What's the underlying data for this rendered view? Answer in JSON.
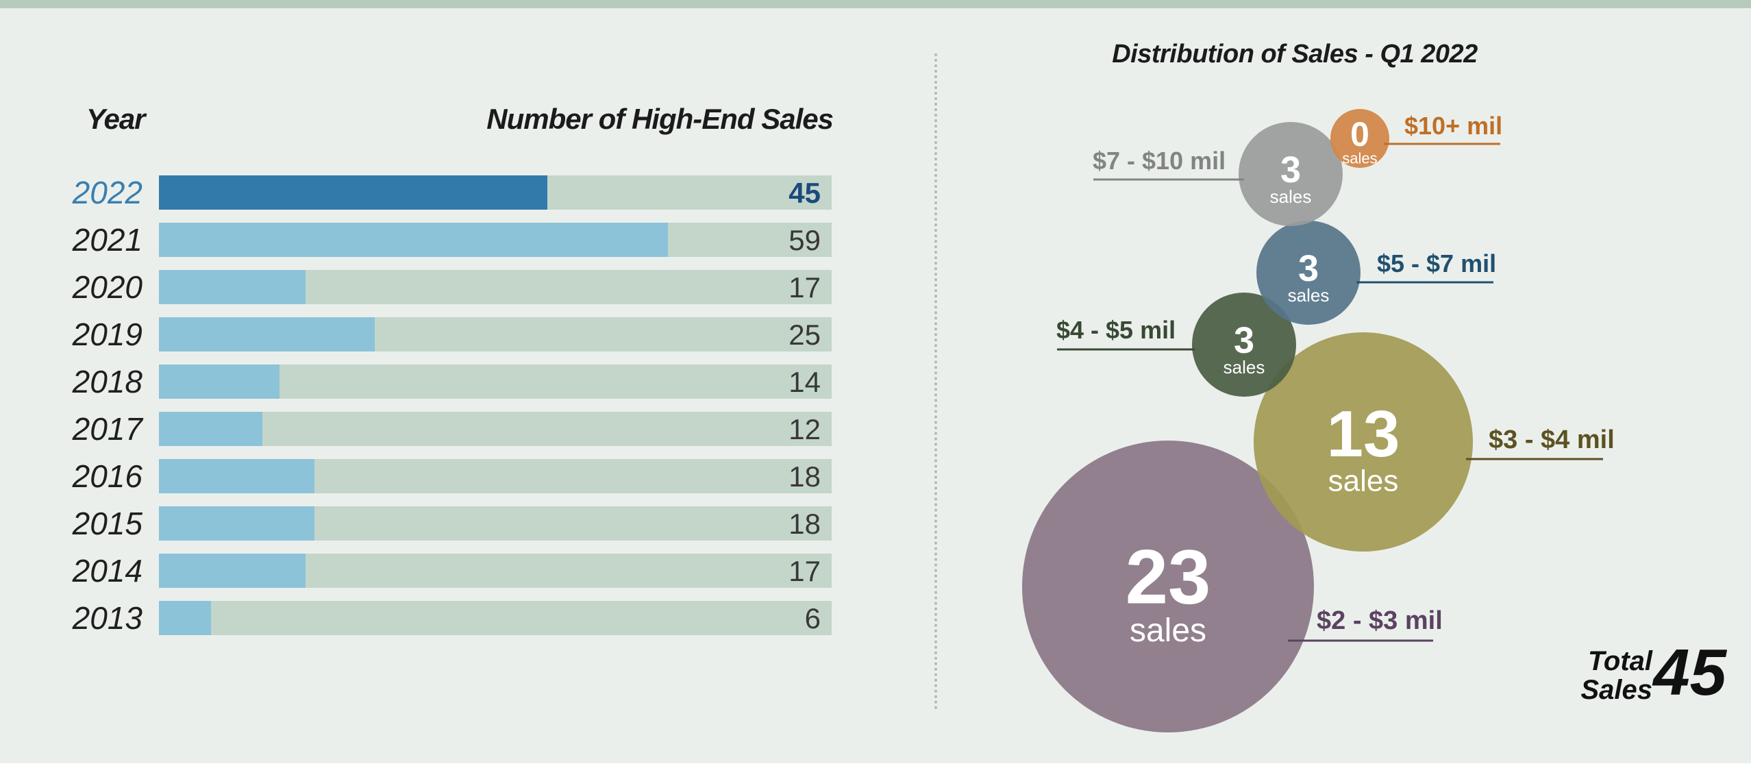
{
  "chart_data": [
    {
      "type": "bar",
      "orientation": "horizontal",
      "category_header": "Year",
      "value_header": "Number of High-End Sales",
      "categories": [
        "2022",
        "2021",
        "2020",
        "2019",
        "2018",
        "2017",
        "2016",
        "2015",
        "2014",
        "2013"
      ],
      "values": [
        45,
        59,
        17,
        25,
        14,
        12,
        18,
        18,
        17,
        6
      ],
      "xlim": [
        0,
        78
      ],
      "highlight_category": "2022",
      "colors": {
        "highlight": "#317aaa",
        "bar": "#8cc3d9",
        "track": "#c4d5ca"
      }
    },
    {
      "type": "bubble",
      "title": "Distribution of Sales - Q1 2022",
      "unit_label": "sales",
      "bubbles": [
        {
          "range": "$10+ mil",
          "count": 0,
          "color": "#d3874a",
          "label_color": "#c06f25"
        },
        {
          "range": "$7 - $10 mil",
          "count": 3,
          "color": "#9a9c9b",
          "label_color": "#828483"
        },
        {
          "range": "$5 - $7 mil",
          "count": 3,
          "color": "#56758a",
          "label_color": "#21506f"
        },
        {
          "range": "$4 - $5 mil",
          "count": 3,
          "color": "#4b5d44",
          "label_color": "#384934"
        },
        {
          "range": "$3 - $4 mil",
          "count": 13,
          "color": "#a29a53",
          "label_color": "#5c5220"
        },
        {
          "range": "$2 - $3 mil",
          "count": 23,
          "color": "#8a7686",
          "label_color": "#5a4360"
        }
      ],
      "total_label": "Total Sales",
      "total_value": "45"
    }
  ],
  "total": {
    "label": "Total\nSales",
    "value": "45"
  }
}
